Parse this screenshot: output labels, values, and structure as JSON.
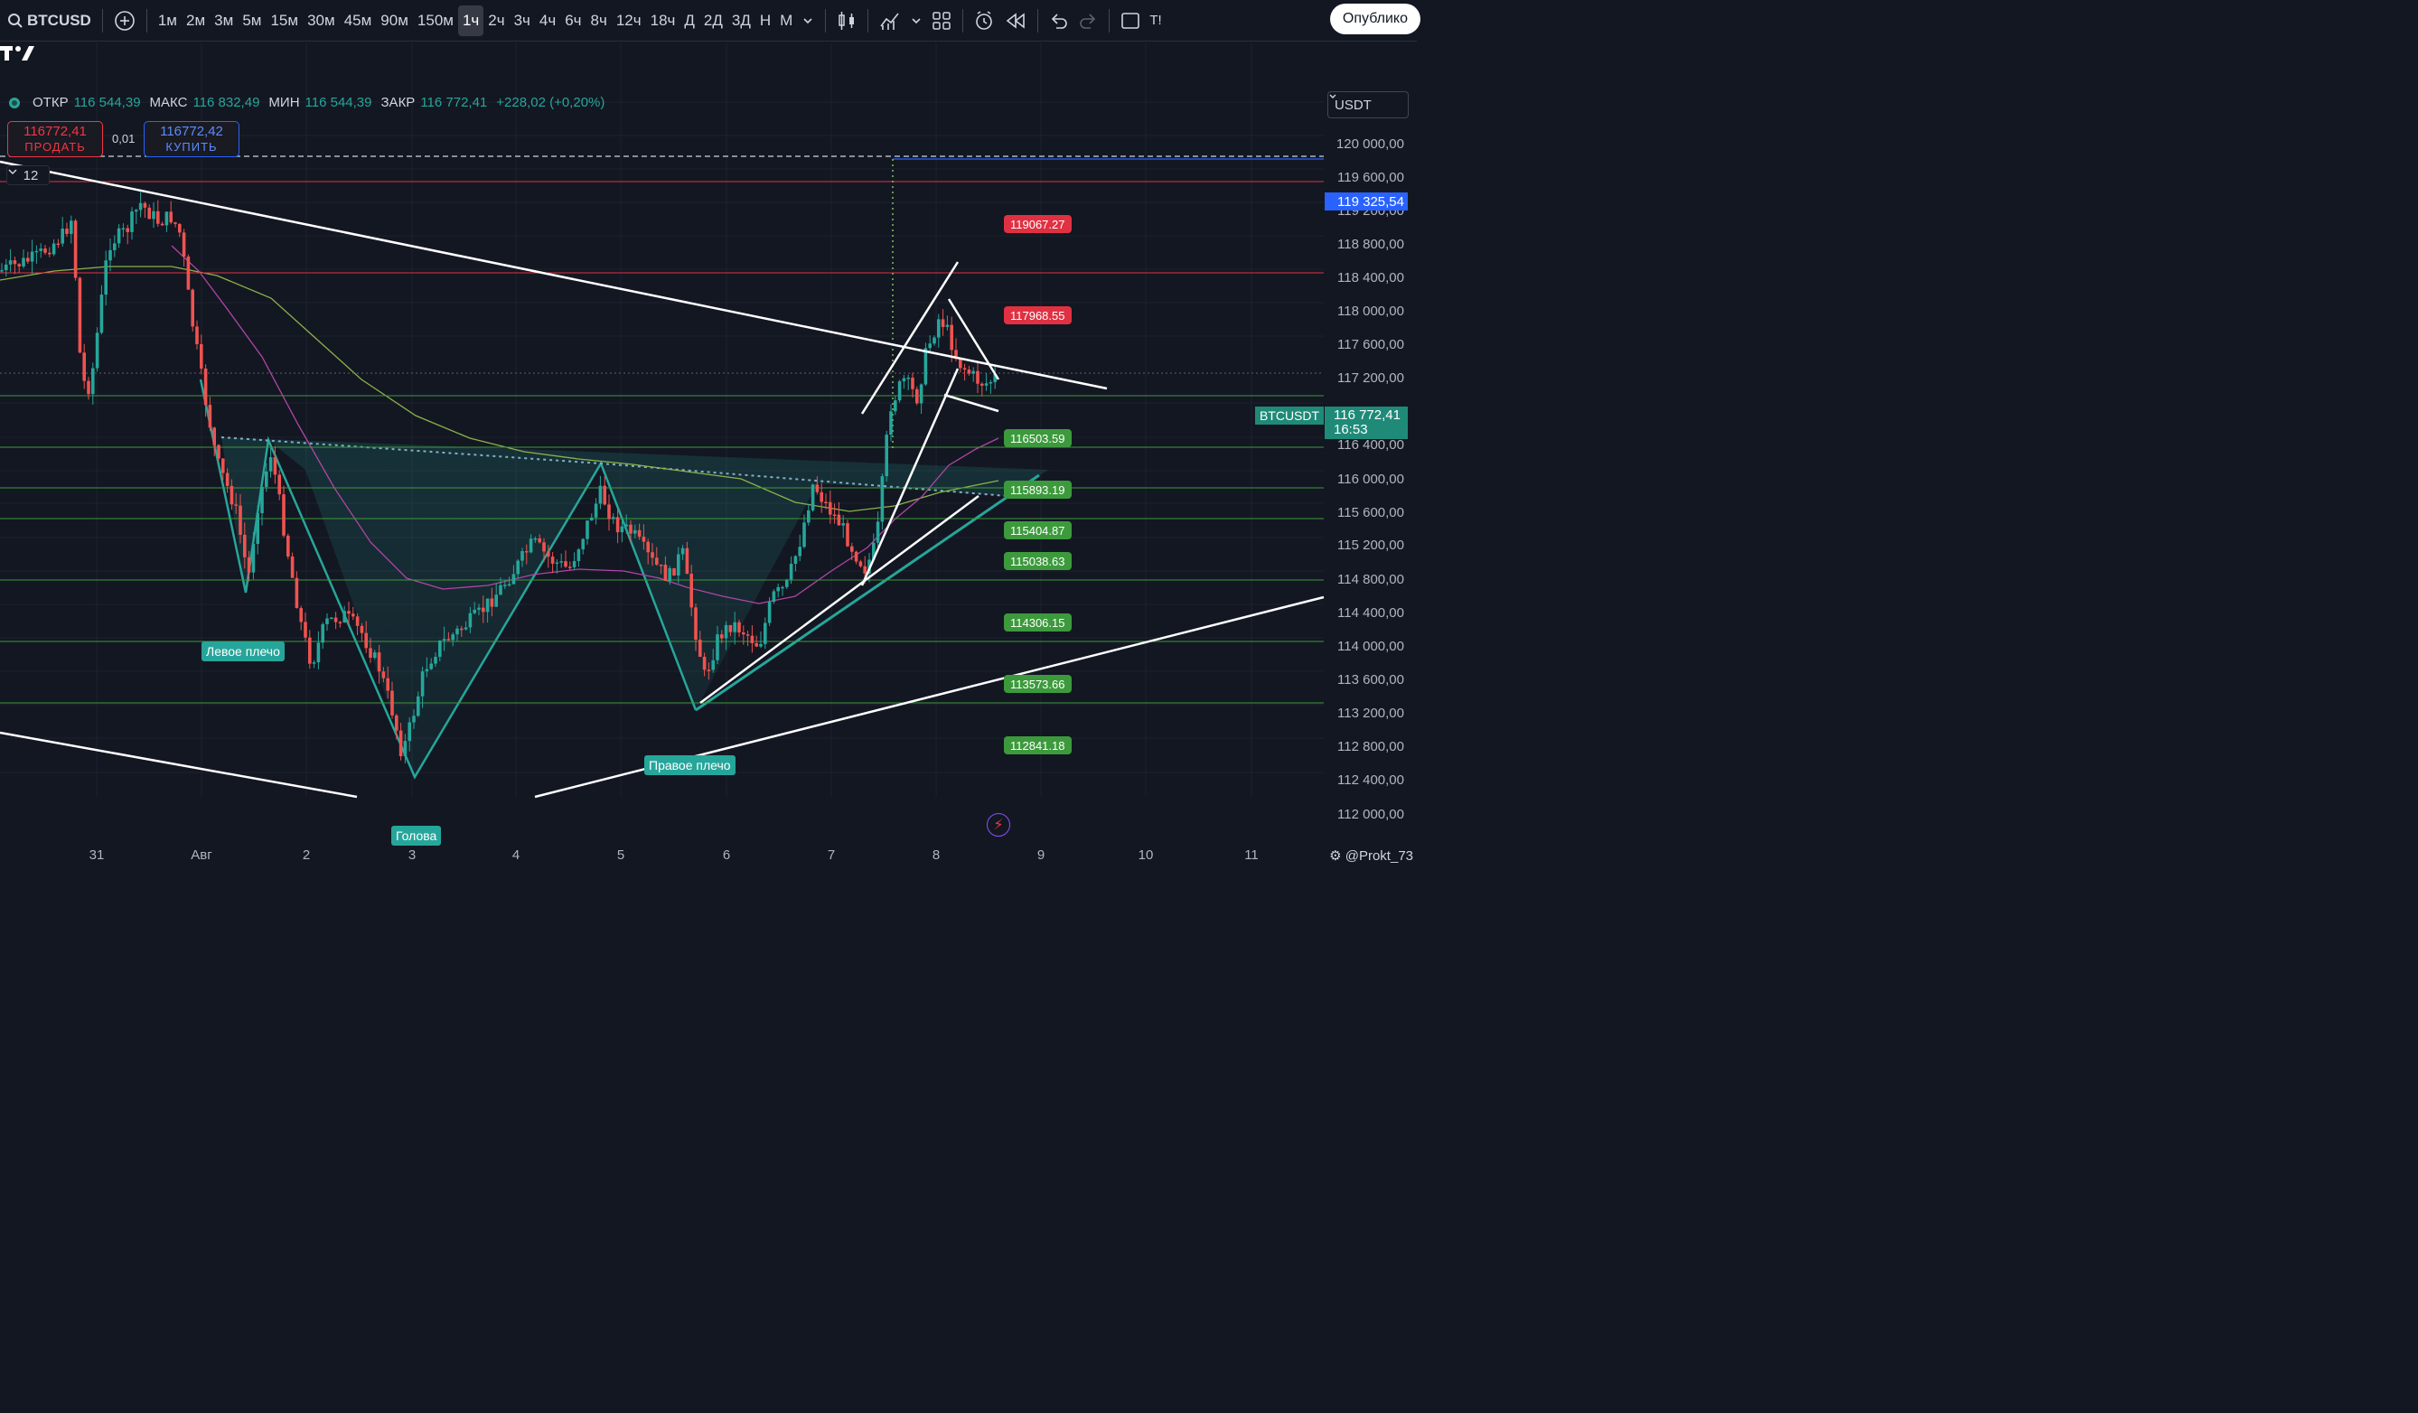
{
  "topbar": {
    "symbol": "BTCUSD",
    "intervals": [
      "1м",
      "2м",
      "3м",
      "5м",
      "15м",
      "30м",
      "45м",
      "90м",
      "150м",
      "1ч",
      "2ч",
      "3ч",
      "4ч",
      "6ч",
      "8ч",
      "12ч",
      "18ч",
      "Д",
      "2Д",
      "3Д",
      "Н",
      "М"
    ],
    "active_interval": "1ч",
    "publish_label": "Опублико",
    "truncated_label": "Т!"
  },
  "legend": {
    "open_label": "ОТКР",
    "open": "116 544,39",
    "high_label": "МАКС",
    "high": "116 832,49",
    "low_label": "МИН",
    "low": "116 544,39",
    "close_label": "ЗАКР",
    "close": "116 772,41",
    "change": "+228,02 (+0,20%)"
  },
  "trade": {
    "sell_price": "116772,41",
    "sell_label": "ПРОДАТЬ",
    "spread": "0,01",
    "buy_price": "116772,42",
    "buy_label": "КУПИТЬ",
    "collapse_count": "12"
  },
  "currency": "USDT",
  "y_axis": {
    "labels": [
      "120 000,00",
      "119 600,00",
      "119 200,00",
      "118 800,00",
      "118 400,00",
      "118 000,00",
      "117 600,00",
      "117 200,00",
      "116 400,00",
      "116 000,00",
      "115 600,00",
      "115 200,00",
      "114 800,00",
      "114 400,00",
      "114 000,00",
      "113 600,00",
      "113 200,00",
      "112 800,00",
      "112 400,00",
      "112 000,00"
    ],
    "alert_price": "119 325,54",
    "current_symbol": "BTCUSDT",
    "current_price": "116 772,41",
    "countdown": "16:53"
  },
  "x_axis": {
    "labels": [
      "31",
      "Авг",
      "2",
      "3",
      "4",
      "5",
      "6",
      "7",
      "8",
      "9",
      "10",
      "11"
    ]
  },
  "levels": [
    {
      "value": "119067.27",
      "color": "red"
    },
    {
      "value": "117968.55",
      "color": "red"
    },
    {
      "value": "116503.59",
      "color": "green"
    },
    {
      "value": "115893.19",
      "color": "green"
    },
    {
      "value": "115404.87",
      "color": "green"
    },
    {
      "value": "115038.63",
      "color": "green"
    },
    {
      "value": "114306.15",
      "color": "green"
    },
    {
      "value": "113573.66",
      "color": "green"
    },
    {
      "value": "112841.18",
      "color": "green"
    }
  ],
  "pattern": {
    "left_shoulder": "Левое плечо",
    "head": "Голова",
    "right_shoulder": "Правое плечо"
  },
  "credit": "@Prokt_73",
  "colors": {
    "background": "#131722",
    "up": "#26a69a",
    "down": "#ef5350",
    "level_red": "#e03142",
    "level_green": "#3c9a3c",
    "accent_blue": "#2962ff"
  }
}
